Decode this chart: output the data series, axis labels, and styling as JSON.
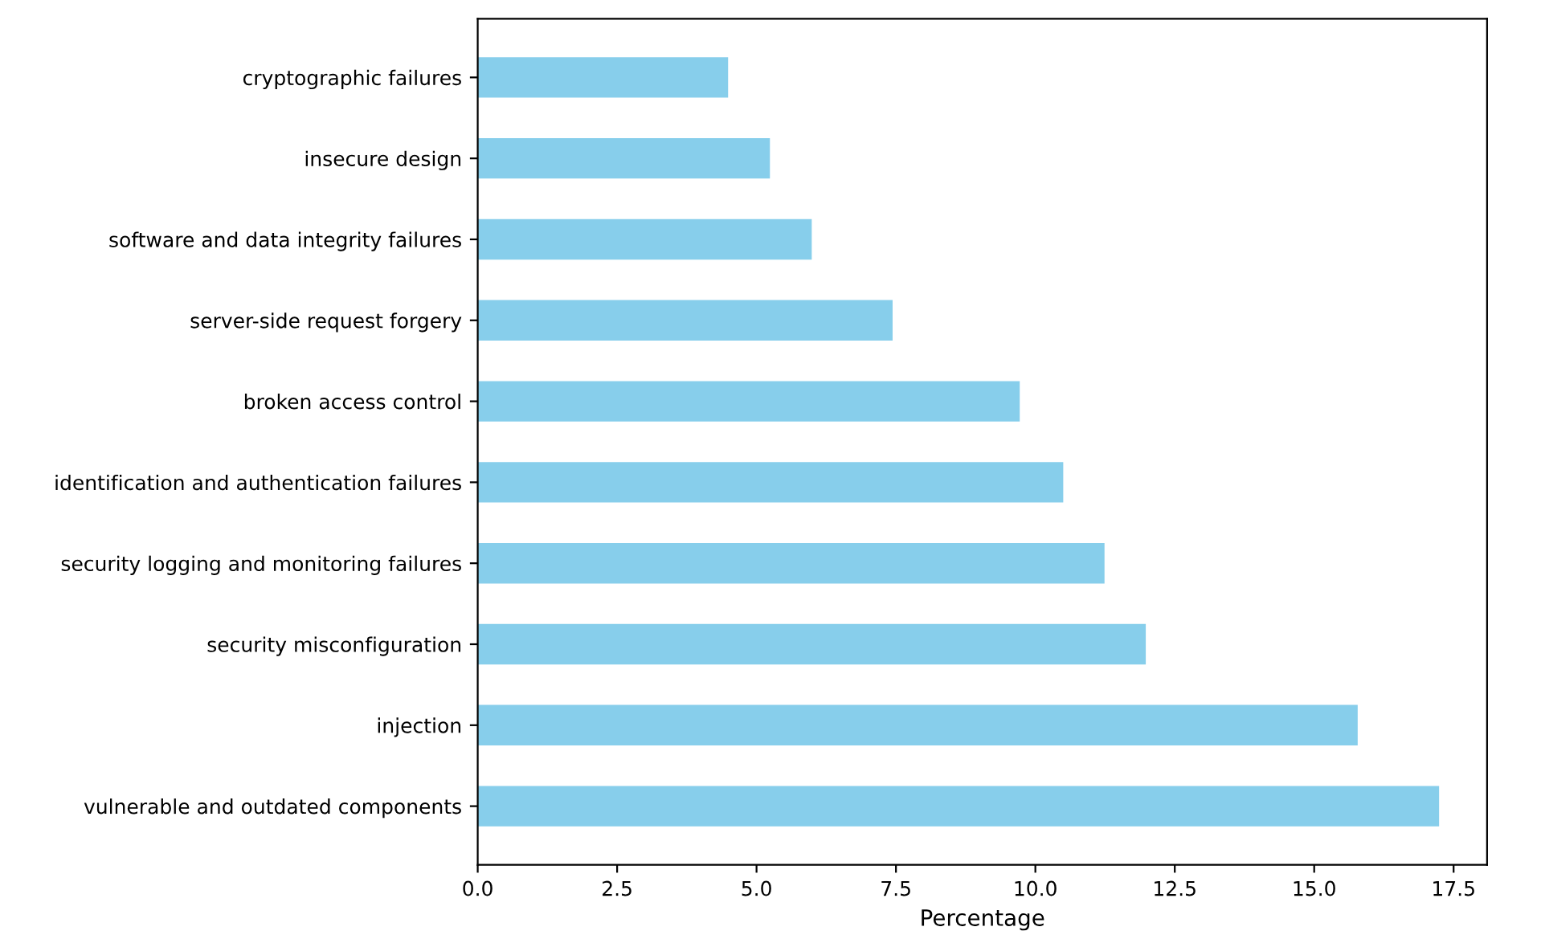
{
  "chart_data": {
    "type": "bar",
    "orientation": "horizontal",
    "xlabel": "Percentage",
    "categories": [
      "cryptographic failures",
      "insecure design",
      "software and data integrity failures",
      "server-side request forgery",
      "broken access control",
      "identification and authentication failures",
      "security logging and monitoring failures",
      "security misconfiguration",
      "injection",
      "vulnerable and outdated components"
    ],
    "values": [
      4.49,
      5.24,
      5.99,
      7.44,
      9.72,
      10.5,
      11.24,
      11.98,
      15.78,
      17.24
    ],
    "color": "#87ceeb",
    "xlim": [
      0,
      18.1
    ],
    "xticks": [
      {
        "value": 0,
        "label": "0.0"
      },
      2.5,
      {
        "value": 5,
        "label": "5.0"
      },
      7.5,
      {
        "value": 10,
        "label": "10.0"
      },
      12.5,
      {
        "value": 15,
        "label": "15.0"
      },
      17.5
    ],
    "grid": false,
    "legend": false
  }
}
